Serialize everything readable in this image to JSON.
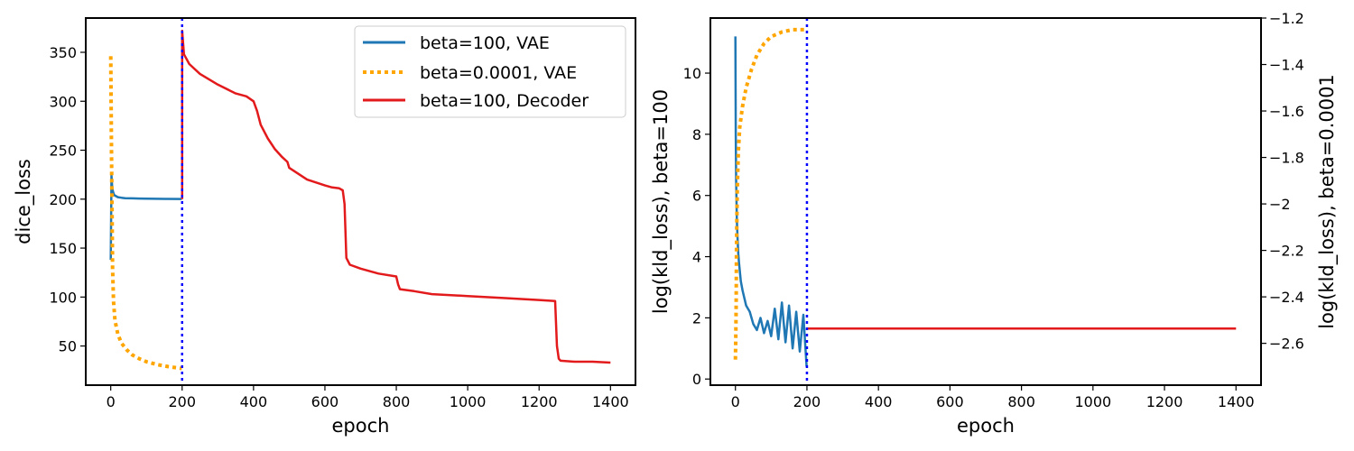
{
  "chart_data": [
    {
      "type": "line",
      "xlabel": "epoch",
      "ylabel": "dice_loss",
      "xlim": [
        -70,
        1470
      ],
      "ylim": [
        10,
        385
      ],
      "xticks": [
        0,
        200,
        400,
        600,
        800,
        1000,
        1200,
        1400
      ],
      "yticks": [
        50,
        100,
        150,
        200,
        250,
        300,
        350
      ],
      "legend_position": "top-right",
      "vline": {
        "x": 200,
        "color": "#0000ff",
        "style": "dotted"
      },
      "series": [
        {
          "name": "beta=100, VAE",
          "color": "#1f77b4",
          "style": "solid",
          "x": [
            0,
            2,
            4,
            6,
            8,
            10,
            15,
            20,
            30,
            40,
            60,
            80,
            100,
            150,
            199
          ],
          "y": [
            138,
            224,
            212,
            208,
            206,
            204,
            203,
            202,
            201.5,
            201,
            200.8,
            200.6,
            200.5,
            200.3,
            200.2
          ]
        },
        {
          "name": "beta=0.0001, VAE",
          "color": "#ffa500",
          "style": "dotted",
          "x": [
            0,
            2,
            5,
            8,
            12,
            20,
            30,
            45,
            60,
            80,
            100,
            130,
            160,
            199
          ],
          "y": [
            346,
            250,
            130,
            95,
            76,
            62,
            53,
            46,
            41,
            37,
            34,
            31,
            29,
            27
          ]
        },
        {
          "name": "beta=100, Decoder",
          "color": "#e31a1c",
          "style": "solid",
          "x": [
            200,
            200,
            205,
            220,
            250,
            300,
            350,
            380,
            400,
            410,
            420,
            440,
            460,
            480,
            495,
            500,
            550,
            600,
            620,
            640,
            650,
            655,
            660,
            670,
            700,
            750,
            800,
            805,
            810,
            850,
            900,
            1000,
            1100,
            1200,
            1245,
            1250,
            1255,
            1260,
            1300,
            1350,
            1400
          ],
          "y": [
            200,
            372,
            348,
            338,
            328,
            317,
            308,
            305,
            300,
            290,
            276,
            262,
            251,
            243,
            238,
            232,
            220,
            214,
            212,
            211,
            209,
            195,
            140,
            133,
            129,
            124,
            121,
            113,
            108,
            106,
            103,
            101,
            99,
            97,
            96,
            50,
            37,
            35,
            34,
            34,
            33
          ]
        }
      ]
    },
    {
      "type": "line",
      "xlabel": "epoch",
      "ylabel": "log(kld_loss), beta=100",
      "y2label": "log(kld_loss), beta=0.0001",
      "xlim": [
        -70,
        1470
      ],
      "ylim": [
        -0.2,
        11.8
      ],
      "y2lim": [
        -2.78,
        -1.2
      ],
      "xticks": [
        0,
        200,
        400,
        600,
        800,
        1000,
        1200,
        1400
      ],
      "yticks": [
        0,
        2,
        4,
        6,
        8,
        10
      ],
      "y2ticks": [
        -2.6,
        -2.4,
        -2.2,
        -2.0,
        -1.8,
        -1.6,
        -1.4,
        -1.2
      ],
      "vline": {
        "x": 200,
        "color": "#0000ff",
        "style": "dotted"
      },
      "series": [
        {
          "color": "#1f77b4",
          "style": "solid",
          "axis": "left",
          "x": [
            0,
            1,
            2,
            4,
            6,
            8,
            10,
            15,
            20,
            30,
            40,
            50,
            60,
            70,
            80,
            90,
            100,
            110,
            120,
            130,
            140,
            150,
            160,
            170,
            180,
            190,
            199
          ],
          "y": [
            11.2,
            8.0,
            6.5,
            5.2,
            4.6,
            4.1,
            3.8,
            3.2,
            2.9,
            2.4,
            2.2,
            1.8,
            1.6,
            2.0,
            1.5,
            1.9,
            1.4,
            2.3,
            1.3,
            2.5,
            1.2,
            2.4,
            1.0,
            2.2,
            0.9,
            2.1,
            0.4
          ]
        },
        {
          "color": "#ffa500",
          "style": "dotted",
          "axis": "right",
          "x": [
            0,
            1,
            2,
            3,
            5,
            8,
            12,
            20,
            30,
            45,
            60,
            80,
            100,
            130,
            160,
            199
          ],
          "y": [
            -2.67,
            -2.58,
            -2.45,
            -2.2,
            -1.95,
            -1.78,
            -1.67,
            -1.58,
            -1.5,
            -1.42,
            -1.36,
            -1.31,
            -1.28,
            -1.26,
            -1.25,
            -1.25
          ]
        },
        {
          "color": "#e31a1c",
          "style": "solid",
          "axis": "left",
          "x": [
            200,
            1400
          ],
          "y": [
            1.65,
            1.65
          ]
        }
      ]
    }
  ]
}
